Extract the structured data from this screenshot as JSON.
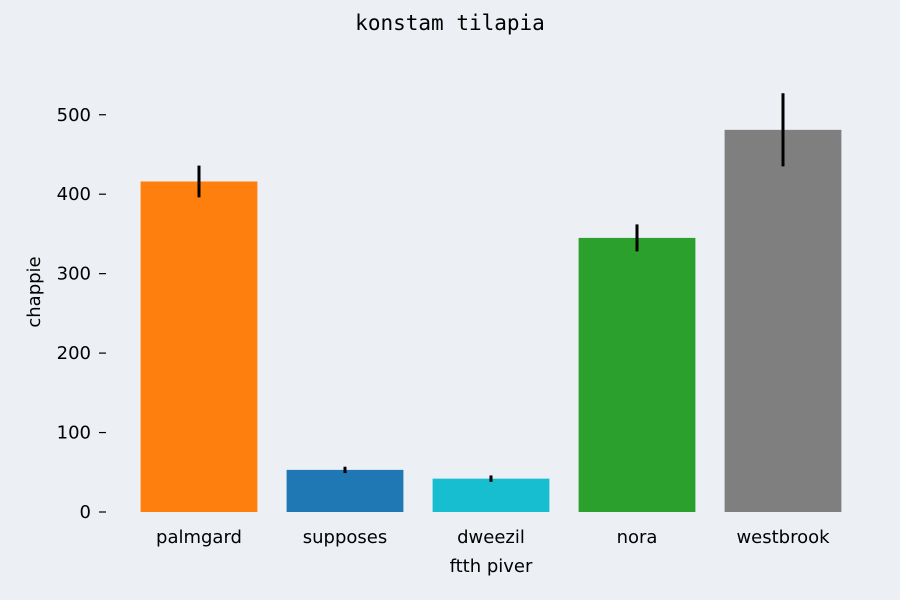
{
  "chart_data": {
    "type": "bar",
    "title": "konstam tilapia",
    "xlabel": "ftth piver",
    "ylabel": "chappie",
    "categories": [
      "palmgard",
      "supposes",
      "dweezil",
      "nora",
      "westbrook"
    ],
    "values": [
      416,
      53,
      42,
      345,
      481
    ],
    "errors": [
      20,
      4,
      4,
      17,
      46
    ],
    "colors": [
      "#ff7f0e",
      "#1f77b4",
      "#17becf",
      "#2ca02c",
      "#7f7f7f"
    ],
    "yticks": [
      0,
      100,
      200,
      300,
      400,
      500
    ],
    "ylim": [
      0,
      560
    ],
    "grid": false
  }
}
